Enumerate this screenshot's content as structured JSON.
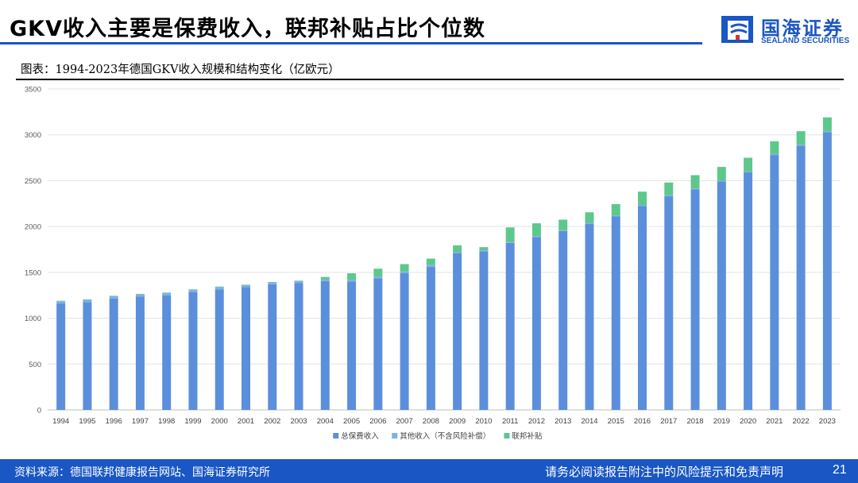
{
  "header": {
    "title": "GKV收入主要是保费收入，联邦补贴占比个位数",
    "brand_name": "国海证券",
    "brand_name_en": "SEALAND SECURITIES"
  },
  "figure": {
    "caption": "图表：1994-2023年德国GKV收入规模和结构变化（亿欧元）"
  },
  "chart_data": {
    "type": "bar",
    "stacked": true,
    "title": "",
    "xlabel": "",
    "ylabel": "",
    "ylim": [
      0,
      3500
    ],
    "yticks": [
      0,
      500,
      1000,
      1500,
      2000,
      2500,
      3000,
      3500
    ],
    "grid": true,
    "legend_position": "bottom",
    "categories": [
      "1994",
      "1995",
      "1996",
      "1997",
      "1998",
      "1999",
      "2000",
      "2001",
      "2002",
      "2003",
      "2004",
      "2005",
      "2006",
      "2007",
      "2008",
      "2009",
      "2010",
      "2011",
      "2012",
      "2013",
      "2014",
      "2015",
      "2016",
      "2017",
      "2018",
      "2019",
      "2020",
      "2021",
      "2022",
      "2023"
    ],
    "series": [
      {
        "name": "总保费收入",
        "color": "#5b8fdc",
        "values": [
          1160,
          1175,
          1215,
          1235,
          1250,
          1285,
          1315,
          1340,
          1370,
          1385,
          1405,
          1400,
          1435,
          1490,
          1560,
          1710,
          1730,
          1820,
          1885,
          1950,
          2030,
          2110,
          2225,
          2330,
          2405,
          2490,
          2590,
          2780,
          2880,
          3030
        ]
      },
      {
        "name": "其他收入（不含风险补偿）",
        "color": "#7fb1e0",
        "values": [
          25,
          25,
          25,
          25,
          25,
          25,
          25,
          20,
          20,
          20,
          20,
          20,
          20,
          20,
          20,
          10,
          10,
          10,
          10,
          10,
          10,
          10,
          10,
          10,
          10,
          10,
          10,
          10,
          10,
          10
        ]
      },
      {
        "name": "联邦补贴",
        "color": "#5dc88c",
        "values": [
          5,
          5,
          5,
          5,
          5,
          5,
          5,
          5,
          5,
          5,
          25,
          70,
          85,
          80,
          70,
          75,
          35,
          160,
          140,
          115,
          115,
          125,
          145,
          140,
          145,
          150,
          150,
          140,
          150,
          150
        ]
      }
    ]
  },
  "footer": {
    "source": "资料来源：德国联邦健康报告网站、国海证券研究所",
    "disclaimer": "请务必阅读报告附注中的风险提示和免责声明",
    "page_number": "21"
  }
}
